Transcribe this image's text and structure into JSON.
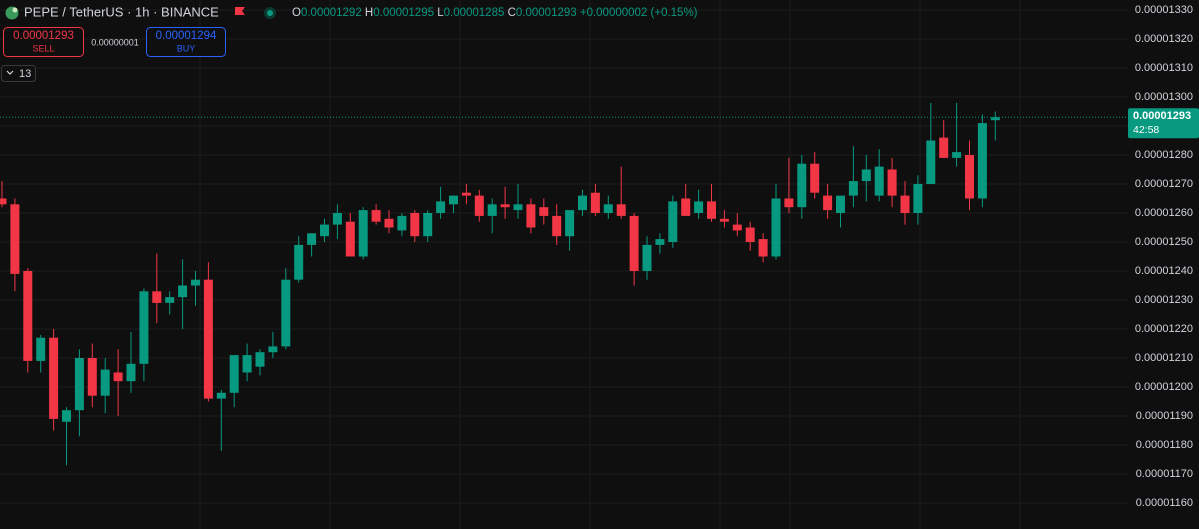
{
  "chart_data": {
    "type": "candlestick",
    "title": "PEPE / TetherUS · 1h · BINANCE",
    "ohlc_labels": [
      "O",
      "H",
      "L",
      "C"
    ],
    "change": "+0.00000002 (+0.15%)",
    "sell_price": "0.00001293",
    "sell_label": "SELL",
    "spread": "0.00000001",
    "buy_price": "0.00001294",
    "buy_label": "BUY",
    "indicator_count": "13",
    "countdown": "42:58",
    "up_color": "#089981",
    "down_color": "#f23645",
    "grid": true,
    "categories": [
      null,
      null,
      null,
      null,
      null,
      null,
      null,
      null,
      null,
      null,
      null,
      null,
      null,
      null,
      null,
      null,
      null,
      null,
      null,
      null,
      null,
      null,
      null,
      null,
      null,
      null,
      null,
      null,
      null,
      null,
      null,
      null,
      null,
      null,
      null,
      null,
      null,
      null,
      null,
      null,
      null,
      null,
      null,
      null,
      null,
      null,
      null,
      null,
      null,
      null,
      null,
      null,
      null,
      null,
      null,
      null,
      null,
      null,
      null,
      null,
      null,
      null,
      null,
      null,
      null,
      null,
      null,
      null,
      null,
      null,
      null,
      null,
      null,
      null,
      null,
      null,
      null,
      null
    ],
    "open": [
      1.265e-05,
      1.263e-05,
      1.24e-05,
      1.209e-05,
      1.217e-05,
      1.188e-05,
      1.192e-05,
      1.21e-05,
      1.197e-05,
      1.205e-05,
      1.202e-05,
      1.208e-05,
      1.233e-05,
      1.229e-05,
      1.231e-05,
      1.235e-05,
      1.237e-05,
      1.196e-05,
      1.198e-05,
      1.205e-05,
      1.207e-05,
      1.212e-05,
      1.214e-05,
      1.237e-05,
      1.249e-05,
      1.252e-05,
      1.256e-05,
      1.257e-05,
      1.245e-05,
      1.261e-05,
      1.258e-05,
      1.254e-05,
      1.26e-05,
      1.252e-05,
      1.26e-05,
      1.263e-05,
      1.267e-05,
      1.266e-05,
      1.259e-05,
      1.263e-05,
      1.261e-05,
      1.263e-05,
      1.262e-05,
      1.259e-05,
      1.252e-05,
      1.261e-05,
      1.267e-05,
      1.26e-05,
      1.263e-05,
      1.259e-05,
      1.24e-05,
      1.249e-05,
      1.25e-05,
      1.265e-05,
      1.26e-05,
      1.264e-05,
      1.258e-05,
      1.256e-05,
      1.255e-05,
      1.251e-05,
      1.245e-05,
      1.265e-05,
      1.262e-05,
      1.277e-05,
      1.266e-05,
      1.26e-05,
      1.266e-05,
      1.271e-05,
      1.266e-05,
      1.275e-05,
      1.266e-05,
      1.26e-05,
      1.27e-05,
      1.286e-05,
      1.279e-05,
      1.28e-05,
      1.265e-05,
      1.292e-05
    ],
    "high": [
      1.271e-05,
      1.265e-05,
      1.241e-05,
      1.218e-05,
      1.22e-05,
      1.193e-05,
      1.213e-05,
      1.215e-05,
      1.21e-05,
      1.213e-05,
      1.219e-05,
      1.234e-05,
      1.246e-05,
      1.233e-05,
      1.244e-05,
      1.24e-05,
      1.243e-05,
      1.199e-05,
      1.211e-05,
      1.215e-05,
      1.213e-05,
      1.219e-05,
      1.241e-05,
      1.252e-05,
      1.253e-05,
      1.258e-05,
      1.263e-05,
      1.26e-05,
      1.262e-05,
      1.263e-05,
      1.261e-05,
      1.26e-05,
      1.261e-05,
      1.261e-05,
      1.269e-05,
      1.266e-05,
      1.27e-05,
      1.268e-05,
      1.265e-05,
      1.269e-05,
      1.27e-05,
      1.265e-05,
      1.265e-05,
      1.263e-05,
      1.26e-05,
      1.268e-05,
      1.27e-05,
      1.266e-05,
      1.276e-05,
      1.26e-05,
      1.252e-05,
      1.253e-05,
      1.266e-05,
      1.27e-05,
      1.268e-05,
      1.27e-05,
      1.261e-05,
      1.26e-05,
      1.257e-05,
      1.253e-05,
      1.27e-05,
      1.279e-05,
      1.28e-05,
      1.281e-05,
      1.27e-05,
      1.266e-05,
      1.283e-05,
      1.28e-05,
      1.282e-05,
      1.279e-05,
      1.271e-05,
      1.273e-05,
      1.298e-05,
      1.292e-05,
      1.298e-05,
      1.285e-05,
      1.294e-05,
      1.295e-05
    ],
    "low": [
      1.262e-05,
      1.233e-05,
      1.205e-05,
      1.205e-05,
      1.185e-05,
      1.173e-05,
      1.183e-05,
      1.193e-05,
      1.191e-05,
      1.19e-05,
      1.198e-05,
      1.202e-05,
      1.222e-05,
      1.225e-05,
      1.22e-05,
      1.228e-05,
      1.195e-05,
      1.178e-05,
      1.193e-05,
      1.202e-05,
      1.204e-05,
      1.21e-05,
      1.213e-05,
      1.236e-05,
      1.245e-05,
      1.25e-05,
      1.251e-05,
      1.245e-05,
      1.244e-05,
      1.256e-05,
      1.253e-05,
      1.252e-05,
      1.25e-05,
      1.25e-05,
      1.258e-05,
      1.26e-05,
      1.263e-05,
      1.257e-05,
      1.253e-05,
      1.258e-05,
      1.258e-05,
      1.253e-05,
      1.256e-05,
      1.249e-05,
      1.247e-05,
      1.259e-05,
      1.259e-05,
      1.258e-05,
      1.258e-05,
      1.235e-05,
      1.237e-05,
      1.246e-05,
      1.248e-05,
      1.259e-05,
      1.258e-05,
      1.257e-05,
      1.255e-05,
      1.252e-05,
      1.247e-05,
      1.243e-05,
      1.244e-05,
      1.26e-05,
      1.258e-05,
      1.265e-05,
      1.258e-05,
      1.255e-05,
      1.262e-05,
      1.264e-05,
      1.264e-05,
      1.262e-05,
      1.256e-05,
      1.256e-05,
      1.27e-05,
      1.279e-05,
      1.276e-05,
      1.261e-05,
      1.262e-05,
      1.285e-05
    ],
    "close": [
      1.263e-05,
      1.239e-05,
      1.209e-05,
      1.217e-05,
      1.189e-05,
      1.192e-05,
      1.21e-05,
      1.197e-05,
      1.206e-05,
      1.202e-05,
      1.208e-05,
      1.233e-05,
      1.229e-05,
      1.231e-05,
      1.235e-05,
      1.237e-05,
      1.196e-05,
      1.198e-05,
      1.211e-05,
      1.211e-05,
      1.212e-05,
      1.214e-05,
      1.237e-05,
      1.249e-05,
      1.253e-05,
      1.256e-05,
      1.26e-05,
      1.245e-05,
      1.261e-05,
      1.257e-05,
      1.255e-05,
      1.259e-05,
      1.252e-05,
      1.26e-05,
      1.264e-05,
      1.266e-05,
      1.266e-05,
      1.259e-05,
      1.263e-05,
      1.262e-05,
      1.263e-05,
      1.255e-05,
      1.259e-05,
      1.252e-05,
      1.261e-05,
      1.266e-05,
      1.26e-05,
      1.263e-05,
      1.259e-05,
      1.24e-05,
      1.249e-05,
      1.251e-05,
      1.264e-05,
      1.259e-05,
      1.264e-05,
      1.258e-05,
      1.257e-05,
      1.254e-05,
      1.25e-05,
      1.245e-05,
      1.265e-05,
      1.262e-05,
      1.277e-05,
      1.267e-05,
      1.261e-05,
      1.266e-05,
      1.271e-05,
      1.275e-05,
      1.276e-05,
      1.266e-05,
      1.26e-05,
      1.27e-05,
      1.285e-05,
      1.279e-05,
      1.281e-05,
      1.265e-05,
      1.291e-05,
      1.293e-05
    ],
    "ylim": [
      1.15103e-05,
      1.33345e-05
    ],
    "yticks": [
      {
        "value": 1.33e-05,
        "label": "0.00001330"
      },
      {
        "value": 1.32e-05,
        "label": "0.00001320"
      },
      {
        "value": 1.31e-05,
        "label": "0.00001310"
      },
      {
        "value": 1.3e-05,
        "label": "0.00001300"
      },
      {
        "value": 1.29e-05,
        "label": "0.00001290"
      },
      {
        "value": 1.28e-05,
        "label": "0.00001280"
      },
      {
        "value": 1.27e-05,
        "label": "0.00001270"
      },
      {
        "value": 1.26e-05,
        "label": "0.00001260"
      },
      {
        "value": 1.25e-05,
        "label": "0.00001250"
      },
      {
        "value": 1.24e-05,
        "label": "0.00001240"
      },
      {
        "value": 1.23e-05,
        "label": "0.00001230"
      },
      {
        "value": 1.22e-05,
        "label": "0.00001220"
      },
      {
        "value": 1.21e-05,
        "label": "0.00001210"
      },
      {
        "value": 1.2e-05,
        "label": "0.00001200"
      },
      {
        "value": 1.19e-05,
        "label": "0.00001190"
      },
      {
        "value": 1.18e-05,
        "label": "0.00001180"
      },
      {
        "value": 1.17e-05,
        "label": "0.00001170"
      },
      {
        "value": 1.16e-05,
        "label": "0.00001160"
      }
    ]
  }
}
